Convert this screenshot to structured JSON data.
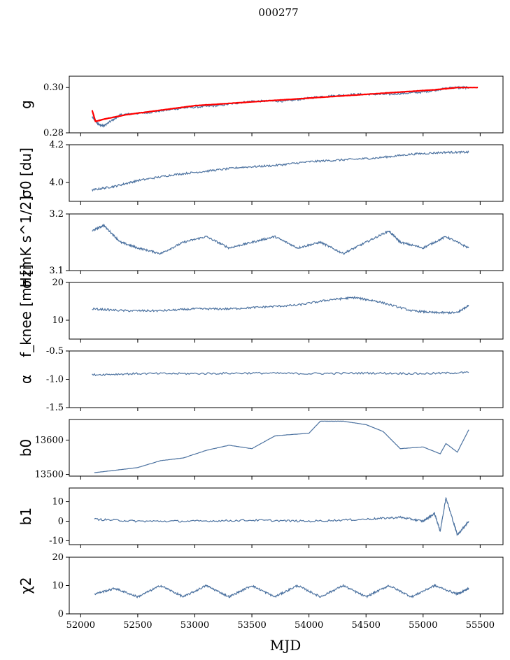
{
  "figure": {
    "title": "000277",
    "xlabel": "MJD"
  },
  "colors": {
    "series": "#4c72a0",
    "fit": "#ff0000"
  },
  "chart_data": [
    {
      "type": "line",
      "panel": "g",
      "ylabel": "g",
      "ylim": [
        0.28,
        0.305
      ],
      "yticks": [
        "0.28",
        "0.30"
      ],
      "yticks_values": [
        0.28,
        0.3
      ],
      "xlim": [
        51900,
        55700
      ],
      "series": [
        {
          "x": [
            52100,
            52150,
            52200,
            52350,
            52600,
            52900,
            53200,
            53500,
            53800,
            54100,
            54400,
            54700,
            55000,
            55250,
            55400
          ],
          "values": [
            0.287,
            0.284,
            0.283,
            0.288,
            0.289,
            0.291,
            0.292,
            0.294,
            0.294,
            0.296,
            0.297,
            0.297,
            0.298,
            0.3,
            0.3
          ]
        },
        {
          "name": "",
          "color_key": "fit",
          "x": [
            52100,
            52130,
            52200,
            52400,
            52700,
            53000,
            53300,
            53600,
            53900,
            54200,
            54500,
            54800,
            55100,
            55300,
            55480
          ],
          "values": [
            0.29,
            0.285,
            0.286,
            0.288,
            0.29,
            0.292,
            0.293,
            0.294,
            0.295,
            0.296,
            0.297,
            0.298,
            0.299,
            0.3,
            0.3
          ]
        }
      ]
    },
    {
      "type": "line",
      "panel": "sigma0",
      "ylabel": "σ0 [du]",
      "ylim": [
        3.9,
        4.2
      ],
      "yticks": [
        "4.0",
        "4.2"
      ],
      "yticks_values": [
        4.0,
        4.2
      ],
      "xlim": [
        51900,
        55700
      ],
      "series": [
        {
          "x": [
            52100,
            52300,
            52500,
            52800,
            53100,
            53400,
            53700,
            54000,
            54300,
            54600,
            54900,
            55200,
            55400
          ],
          "values": [
            3.96,
            3.98,
            4.01,
            4.04,
            4.06,
            4.08,
            4.09,
            4.11,
            4.12,
            4.13,
            4.15,
            4.16,
            4.16
          ]
        }
      ]
    },
    {
      "type": "line",
      "panel": "sigma",
      "ylabel": "σ [mK s^1/2]",
      "ylim": [
        3.1,
        3.2
      ],
      "yticks": [
        "3.1",
        "3.2"
      ],
      "yticks_values": [
        3.1,
        3.2
      ],
      "xlim": [
        51900,
        55700
      ],
      "series": [
        {
          "x": [
            52100,
            52200,
            52350,
            52500,
            52700,
            52900,
            53100,
            53300,
            53500,
            53700,
            53900,
            54100,
            54300,
            54500,
            54700,
            54800,
            55000,
            55200,
            55400
          ],
          "values": [
            3.17,
            3.18,
            3.15,
            3.14,
            3.13,
            3.15,
            3.16,
            3.14,
            3.15,
            3.16,
            3.14,
            3.15,
            3.13,
            3.15,
            3.17,
            3.15,
            3.14,
            3.16,
            3.14
          ]
        }
      ]
    },
    {
      "type": "line",
      "panel": "fknee",
      "ylabel": "f_knee [mHz]",
      "ylim": [
        5,
        20
      ],
      "yticks": [
        "10",
        "20"
      ],
      "yticks_values": [
        10,
        20
      ],
      "xlim": [
        51900,
        55700
      ],
      "series": [
        {
          "x": [
            52100,
            52400,
            52700,
            53000,
            53300,
            53600,
            53900,
            54200,
            54400,
            54600,
            54900,
            55100,
            55300,
            55400
          ],
          "values": [
            13,
            12.5,
            12.5,
            13,
            13,
            13.5,
            14,
            15.5,
            16,
            15,
            12.5,
            12,
            12,
            14
          ]
        }
      ]
    },
    {
      "type": "line",
      "panel": "alpha",
      "ylabel": "α",
      "ylim": [
        -1.5,
        -0.5
      ],
      "yticks": [
        "-1.5",
        "-1.0",
        "-0.5"
      ],
      "yticks_values": [
        -1.5,
        -1.0,
        -0.5
      ],
      "xlim": [
        51900,
        55700
      ],
      "series": [
        {
          "x": [
            52100,
            52500,
            53000,
            53500,
            54000,
            54500,
            55000,
            55400
          ],
          "values": [
            -0.92,
            -0.9,
            -0.9,
            -0.89,
            -0.9,
            -0.89,
            -0.9,
            -0.88
          ]
        }
      ]
    },
    {
      "type": "line",
      "panel": "b0",
      "ylabel": "b0",
      "ylim": [
        13495,
        13660
      ],
      "yticks": [
        "13500",
        "13600"
      ],
      "yticks_values": [
        13500,
        13600
      ],
      "xlim": [
        51900,
        55700
      ],
      "series": [
        {
          "x": [
            52120,
            52300,
            52500,
            52700,
            52900,
            53100,
            53300,
            53500,
            53700,
            53800,
            54000,
            54100,
            54300,
            54500,
            54650,
            54800,
            55000,
            55150,
            55200,
            55300,
            55400
          ],
          "values": [
            13505,
            13512,
            13520,
            13540,
            13548,
            13570,
            13585,
            13575,
            13612,
            13615,
            13620,
            13655,
            13655,
            13645,
            13625,
            13575,
            13580,
            13560,
            13590,
            13565,
            13630
          ]
        }
      ]
    },
    {
      "type": "line",
      "panel": "b1",
      "ylabel": "b1",
      "ylim": [
        -12,
        17
      ],
      "yticks": [
        "-10",
        "0",
        "10"
      ],
      "yticks_values": [
        -10,
        0,
        10
      ],
      "xlim": [
        51900,
        55700
      ],
      "series": [
        {
          "x": [
            52120,
            52500,
            53000,
            53500,
            54000,
            54500,
            54800,
            55000,
            55100,
            55150,
            55200,
            55300,
            55400
          ],
          "values": [
            1,
            0,
            0,
            0.5,
            0,
            1,
            2,
            0,
            4,
            -5,
            12,
            -7,
            0
          ]
        }
      ]
    },
    {
      "type": "line",
      "panel": "chi2",
      "ylabel": "χ2",
      "ylim": [
        0,
        20
      ],
      "yticks": [
        "0",
        "10",
        "20"
      ],
      "yticks_values": [
        0,
        10,
        20
      ],
      "xlim": [
        51900,
        55700
      ],
      "xticks": [
        "52000",
        "52500",
        "53000",
        "53500",
        "54000",
        "54500",
        "55000",
        "55500"
      ],
      "xticks_values": [
        52000,
        52500,
        53000,
        53500,
        54000,
        54500,
        55000,
        55500
      ],
      "series": [
        {
          "x": [
            52120,
            52300,
            52500,
            52700,
            52900,
            53100,
            53300,
            53500,
            53700,
            53900,
            54100,
            54300,
            54500,
            54700,
            54900,
            55100,
            55300,
            55400
          ],
          "values": [
            7,
            9,
            6,
            10,
            6,
            10,
            6,
            10,
            6,
            10,
            6,
            10,
            6,
            10,
            6,
            10,
            7,
            9
          ]
        }
      ]
    }
  ]
}
